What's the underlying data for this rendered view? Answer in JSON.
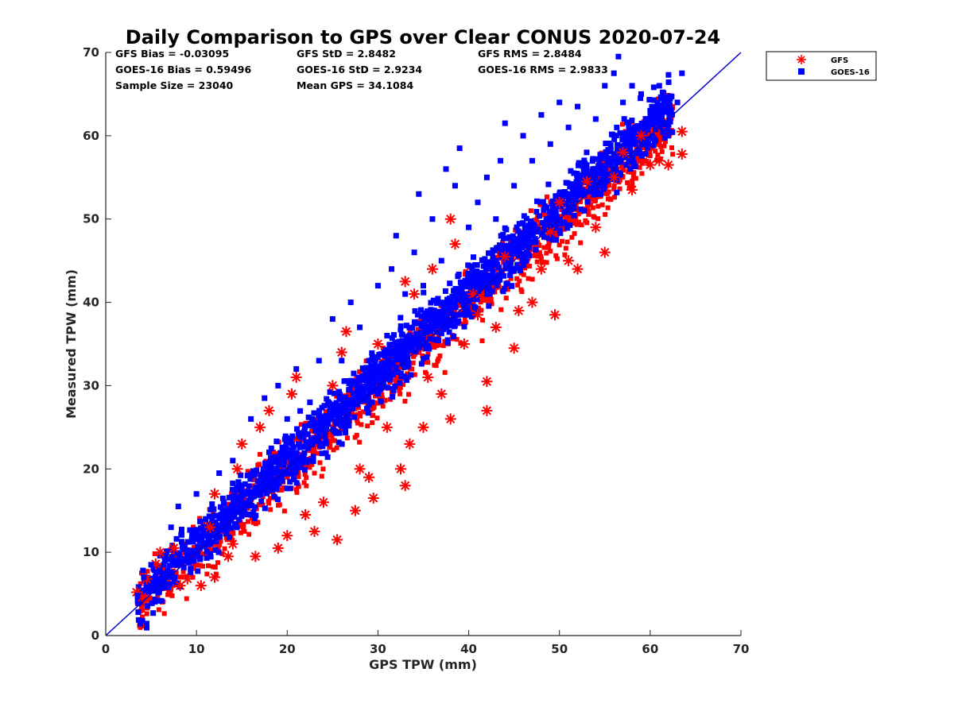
{
  "chart_data": {
    "type": "scatter",
    "title": "Daily Comparison to GPS over Clear CONUS 2020-07-24",
    "xlabel": "GPS TPW (mm)",
    "ylabel": "Measured TPW (mm)",
    "xlim": [
      0,
      70
    ],
    "ylim": [
      0,
      70
    ],
    "xticks": [
      "0",
      "10",
      "20",
      "30",
      "40",
      "50",
      "60",
      "70"
    ],
    "yticks": [
      "0",
      "10",
      "20",
      "30",
      "40",
      "50",
      "60",
      "70"
    ],
    "grid": false,
    "legend_position": "outside top-right",
    "stats": [
      [
        "GFS Bias = -0.03095",
        "GFS StD = 2.8482",
        "GFS RMS = 2.8484"
      ],
      [
        "GOES-16 Bias = 0.59496",
        "GOES-16 StD = 2.9234",
        "GOES-16 RMS = 2.9833"
      ],
      [
        "Sample Size = 23040",
        "Mean GPS = 34.1084"
      ]
    ],
    "reference_line": {
      "name": "1:1 line",
      "x": [
        0,
        70
      ],
      "y": [
        0,
        70
      ],
      "color": "#0000cc"
    },
    "series": [
      {
        "name": "GFS",
        "marker": "asterisk",
        "color": "#ff0000",
        "points": [
          [
            3.4,
            5.2
          ],
          [
            4.0,
            4.6
          ],
          [
            4.5,
            6.8
          ],
          [
            5.5,
            8.6
          ],
          [
            6.0,
            10.0
          ],
          [
            7.5,
            10.5
          ],
          [
            8.2,
            6.0
          ],
          [
            9.0,
            6.8
          ],
          [
            10.5,
            6.0
          ],
          [
            12.0,
            7.0
          ],
          [
            11.5,
            13.0
          ],
          [
            12.0,
            17.0
          ],
          [
            13.5,
            9.5
          ],
          [
            14.0,
            11.0
          ],
          [
            14.5,
            20.0
          ],
          [
            15.0,
            23.0
          ],
          [
            16.5,
            9.5
          ],
          [
            17.0,
            25.0
          ],
          [
            18.0,
            27.0
          ],
          [
            19.0,
            10.5
          ],
          [
            20.0,
            12.0
          ],
          [
            20.5,
            29.0
          ],
          [
            21.0,
            31.0
          ],
          [
            22.0,
            14.5
          ],
          [
            23.0,
            12.5
          ],
          [
            24.0,
            16.0
          ],
          [
            25.0,
            30.0
          ],
          [
            25.5,
            11.5
          ],
          [
            26.0,
            34.0
          ],
          [
            26.5,
            36.5
          ],
          [
            27.5,
            15.0
          ],
          [
            28.0,
            20.0
          ],
          [
            29.0,
            19.0
          ],
          [
            29.5,
            16.5
          ],
          [
            30.0,
            35.0
          ],
          [
            31.0,
            25.0
          ],
          [
            32.5,
            20.0
          ],
          [
            33.0,
            18.0
          ],
          [
            33.5,
            23.0
          ],
          [
            33.0,
            42.5
          ],
          [
            34.0,
            41.0
          ],
          [
            35.0,
            25.0
          ],
          [
            35.5,
            31.0
          ],
          [
            36.0,
            44.0
          ],
          [
            37.0,
            29.0
          ],
          [
            38.0,
            26.0
          ],
          [
            38.5,
            47.0
          ],
          [
            38.0,
            50.0
          ],
          [
            39.5,
            35.0
          ],
          [
            40.5,
            41.0
          ],
          [
            41.0,
            38.5
          ],
          [
            42.0,
            30.5
          ],
          [
            42.0,
            27.0
          ],
          [
            43.0,
            37.0
          ],
          [
            44.0,
            45.5
          ],
          [
            45.0,
            34.5
          ],
          [
            45.5,
            39.0
          ],
          [
            47.0,
            40.0
          ],
          [
            48.0,
            44.0
          ],
          [
            49.0,
            48.5
          ],
          [
            49.5,
            38.5
          ],
          [
            50.0,
            52.0
          ],
          [
            51.0,
            45.0
          ],
          [
            52.0,
            44.0
          ],
          [
            53.0,
            54.5
          ],
          [
            54.0,
            49.0
          ],
          [
            55.0,
            46.0
          ],
          [
            56.0,
            55.0
          ],
          [
            57.0,
            58.0
          ],
          [
            58.0,
            53.5
          ],
          [
            59.0,
            60.0
          ],
          [
            60.0,
            56.5
          ],
          [
            61.0,
            57.0
          ],
          [
            62.0,
            56.5
          ],
          [
            63.5,
            60.5
          ],
          [
            63.5,
            57.8
          ]
        ]
      },
      {
        "name": "GOES-16",
        "marker": "square",
        "color": "#0000ff",
        "points": [
          [
            3.5,
            4.8
          ],
          [
            4.2,
            7.0
          ],
          [
            5.0,
            8.5
          ],
          [
            6.5,
            9.0
          ],
          [
            7.2,
            13.0
          ],
          [
            8.0,
            15.5
          ],
          [
            9.5,
            12.0
          ],
          [
            10.0,
            17.0
          ],
          [
            11.0,
            14.0
          ],
          [
            12.5,
            19.5
          ],
          [
            13.0,
            16.0
          ],
          [
            14.0,
            21.0
          ],
          [
            15.0,
            18.0
          ],
          [
            16.0,
            26.0
          ],
          [
            17.5,
            28.5
          ],
          [
            18.0,
            22.0
          ],
          [
            19.0,
            30.0
          ],
          [
            20.0,
            26.0
          ],
          [
            21.0,
            32.0
          ],
          [
            22.5,
            28.0
          ],
          [
            23.5,
            33.0
          ],
          [
            24.0,
            25.0
          ],
          [
            25.0,
            38.0
          ],
          [
            26.0,
            33.0
          ],
          [
            27.0,
            40.0
          ],
          [
            28.0,
            37.0
          ],
          [
            29.0,
            33.0
          ],
          [
            30.0,
            42.0
          ],
          [
            31.0,
            36.0
          ],
          [
            31.5,
            44.0
          ],
          [
            32.0,
            48.0
          ],
          [
            33.0,
            41.0
          ],
          [
            34.0,
            46.0
          ],
          [
            34.5,
            53.0
          ],
          [
            35.0,
            42.0
          ],
          [
            36.0,
            50.0
          ],
          [
            37.0,
            45.0
          ],
          [
            37.5,
            56.0
          ],
          [
            38.5,
            54.0
          ],
          [
            39.0,
            58.5
          ],
          [
            40.0,
            49.0
          ],
          [
            41.0,
            52.0
          ],
          [
            42.0,
            55.0
          ],
          [
            43.0,
            50.0
          ],
          [
            43.5,
            57.0
          ],
          [
            44.0,
            61.5
          ],
          [
            45.0,
            54.0
          ],
          [
            46.0,
            60.0
          ],
          [
            47.0,
            57.0
          ],
          [
            48.0,
            62.5
          ],
          [
            49.0,
            59.0
          ],
          [
            50.0,
            64.0
          ],
          [
            51.0,
            61.0
          ],
          [
            52.0,
            63.5
          ],
          [
            53.0,
            58.0
          ],
          [
            54.0,
            62.0
          ],
          [
            55.0,
            66.0
          ],
          [
            56.0,
            67.5
          ],
          [
            56.5,
            69.5
          ],
          [
            57.0,
            64.0
          ],
          [
            58.0,
            66.0
          ],
          [
            59.0,
            65.0
          ],
          [
            60.0,
            63.0
          ],
          [
            61.0,
            66.0
          ],
          [
            62.0,
            60.0
          ],
          [
            63.0,
            64.0
          ],
          [
            63.5,
            67.5
          ]
        ]
      }
    ]
  }
}
